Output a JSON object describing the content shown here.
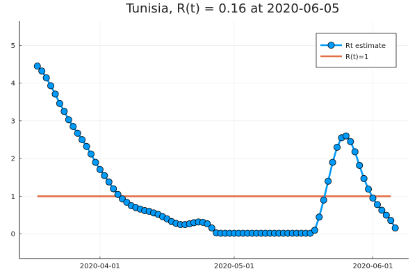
{
  "chart_data": {
    "type": "line",
    "title": "Tunisia, R(t) = 0.16 at 2020-06-05",
    "xlabel": "",
    "ylabel": "",
    "x_start": "2020-03-18",
    "x_end": "2020-06-05",
    "xlim": [
      "2020-03-14",
      "2020-06-09"
    ],
    "ylim": [
      -0.65,
      5.65
    ],
    "x_ticks": [
      "2020-04-01",
      "2020-05-01",
      "2020-06-01"
    ],
    "y_ticks": [
      0,
      1,
      2,
      3,
      4,
      5
    ],
    "grid": true,
    "legend_position": "top-right",
    "series": [
      {
        "name": "Rt estimate",
        "color": "#009af9",
        "marker": "circle",
        "values": [
          4.45,
          4.32,
          4.14,
          3.93,
          3.71,
          3.46,
          3.25,
          3.03,
          2.85,
          2.67,
          2.5,
          2.32,
          2.12,
          1.9,
          1.71,
          1.55,
          1.38,
          1.2,
          1.05,
          0.93,
          0.84,
          0.75,
          0.7,
          0.66,
          0.62,
          0.6,
          0.56,
          0.52,
          0.46,
          0.4,
          0.33,
          0.28,
          0.25,
          0.25,
          0.27,
          0.3,
          0.32,
          0.31,
          0.27,
          0.16,
          0.03,
          0.02,
          0.02,
          0.02,
          0.02,
          0.02,
          0.02,
          0.02,
          0.02,
          0.02,
          0.02,
          0.02,
          0.02,
          0.02,
          0.02,
          0.02,
          0.02,
          0.02,
          0.02,
          0.02,
          0.02,
          0.02,
          0.1,
          0.45,
          0.9,
          1.4,
          1.9,
          2.3,
          2.55,
          2.6,
          2.45,
          2.18,
          1.82,
          1.47,
          1.19,
          0.95,
          0.78,
          0.63,
          0.5,
          0.36,
          0.16
        ]
      },
      {
        "name": "R(t)=1",
        "color": "#e26f46",
        "values": [
          1,
          1
        ]
      }
    ]
  }
}
